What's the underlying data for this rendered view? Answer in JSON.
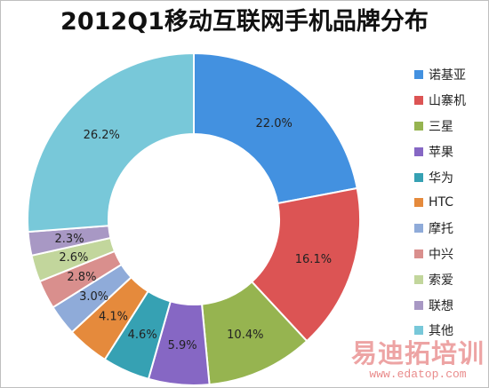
{
  "chart_data": {
    "type": "pie",
    "title": "2012Q1移动互联网手机品牌分布",
    "legend_position": "right",
    "slices": [
      {
        "name": "诺基亚",
        "value": 22.0,
        "label": "22.0%",
        "color": "#4391e0"
      },
      {
        "name": "山寨机",
        "value": 16.1,
        "label": "16.1%",
        "color": "#dc5454"
      },
      {
        "name": "三星",
        "value": 10.4,
        "label": "10.4%",
        "color": "#96b450"
      },
      {
        "name": "苹果",
        "value": 5.9,
        "label": "5.9%",
        "color": "#8667c4"
      },
      {
        "name": "华为",
        "value": 4.6,
        "label": "4.6%",
        "color": "#36a1b3"
      },
      {
        "name": "HTC",
        "value": 4.1,
        "label": "4.1%",
        "color": "#e58a3c"
      },
      {
        "name": "摩托",
        "value": 3.0,
        "label": "3.0%",
        "color": "#8fabd9"
      },
      {
        "name": "中兴",
        "value": 2.8,
        "label": "2.8%",
        "color": "#d98f8d"
      },
      {
        "name": "索爱",
        "value": 2.6,
        "label": "2.6%",
        "color": "#c2d69c"
      },
      {
        "name": "联想",
        "value": 2.3,
        "label": "2.3%",
        "color": "#a898c4"
      },
      {
        "name": "其他",
        "value": 26.2,
        "label": "26.2%",
        "color": "#78c8d9"
      }
    ]
  },
  "watermark": {
    "text": "易迪拓培训",
    "url": "www.edatop.com"
  }
}
